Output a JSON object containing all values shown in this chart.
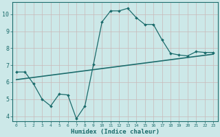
{
  "xlabel": "Humidex (Indice chaleur)",
  "background_color": "#cce8e8",
  "line_color": "#1a6b6b",
  "grid_color": "#b8d8d8",
  "xlim": [
    -0.5,
    23.5
  ],
  "ylim": [
    3.7,
    10.7
  ],
  "yticks": [
    4,
    5,
    6,
    7,
    8,
    9,
    10
  ],
  "xticks": [
    0,
    1,
    2,
    3,
    4,
    5,
    6,
    7,
    8,
    9,
    10,
    11,
    12,
    13,
    14,
    15,
    16,
    17,
    18,
    19,
    20,
    21,
    22,
    23
  ],
  "series1_x": [
    0,
    1,
    2,
    3,
    4,
    5,
    6,
    7,
    8,
    9,
    10,
    11,
    12,
    13,
    14,
    15,
    16,
    17,
    18,
    19,
    20,
    21,
    22,
    23
  ],
  "series1_y": [
    6.6,
    6.6,
    5.9,
    5.0,
    4.6,
    5.3,
    5.25,
    3.85,
    4.6,
    7.05,
    9.55,
    10.2,
    10.2,
    10.35,
    9.8,
    9.4,
    9.4,
    8.5,
    7.7,
    7.6,
    7.55,
    7.8,
    7.75,
    7.75
  ],
  "series2_x": [
    0,
    23
  ],
  "series2_y": [
    6.15,
    7.65
  ]
}
